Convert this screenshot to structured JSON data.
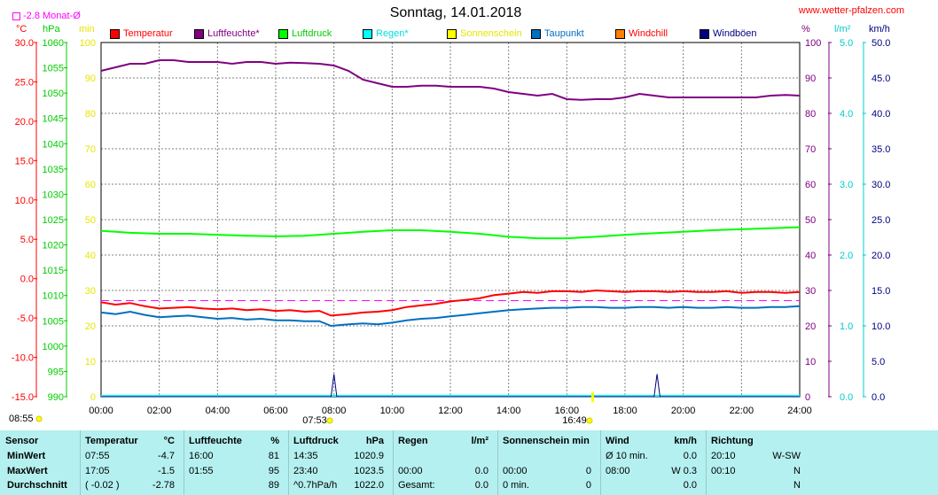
{
  "header": {
    "title": "Sonntag, 14.01.2018",
    "site": "www.wetter-pfalzen.com",
    "month_avg": "-2.8 Monat-Ø"
  },
  "units": {
    "temp": "°C",
    "pressure": "hPa",
    "minutes": "min",
    "percent": "%",
    "rain": "l/m²",
    "wind": "km/h"
  },
  "legend": [
    {
      "label": "Temperatur",
      "color": "#ff0000"
    },
    {
      "label": "Luftfeuchte*",
      "color": "#800080"
    },
    {
      "label": "Luftdruck",
      "color": "#00ff00"
    },
    {
      "label": "Regen*",
      "color": "#00ffff"
    },
    {
      "label": "Sonnenschein",
      "color": "#ffff00"
    },
    {
      "label": "Taupunkt",
      "color": "#0070c0"
    },
    {
      "label": "Windchill",
      "color": "#ff8000"
    },
    {
      "label": "Windböen",
      "color": "#000080"
    }
  ],
  "axes": {
    "temp_ticks": [
      "30.0",
      "25.0",
      "20.0",
      "15.0",
      "10.0",
      "5.0",
      "0.0",
      "-5.0",
      "-10.0",
      "-15.0"
    ],
    "pressure_ticks": [
      "1060",
      "1055",
      "1050",
      "1045",
      "1040",
      "1035",
      "1030",
      "1025",
      "1020",
      "1015",
      "1010",
      "1005",
      "1000",
      "995",
      "990"
    ],
    "minutes_ticks": [
      "100",
      "90",
      "80",
      "70",
      "60",
      "50",
      "40",
      "30",
      "20",
      "10",
      "0"
    ],
    "percent_ticks": [
      "100",
      "90",
      "80",
      "70",
      "60",
      "50",
      "40",
      "30",
      "20",
      "10",
      "0"
    ],
    "rain_ticks": [
      "5.0",
      "4.0",
      "3.0",
      "2.0",
      "1.0",
      "0.0"
    ],
    "wind_ticks": [
      "50.0",
      "45.0",
      "40.0",
      "35.0",
      "30.0",
      "25.0",
      "20.0",
      "15.0",
      "10.0",
      "5.0",
      "0.0"
    ],
    "time_ticks": [
      "00:00",
      "02:00",
      "04:00",
      "06:00",
      "08:00",
      "10:00",
      "12:00",
      "14:00",
      "16:00",
      "18:00",
      "20:00",
      "22:00",
      "24:00"
    ]
  },
  "sun": {
    "rise_left": "08:55",
    "rise_axis": "07:53",
    "set_axis": "16:49"
  },
  "chart_data": {
    "type": "line",
    "x_unit": "hours",
    "xlim": [
      0,
      24
    ],
    "month_avg_temp": -2.8,
    "series": [
      {
        "name": "Temperatur",
        "color": "#ff0000",
        "axis": "temp",
        "ylim": [
          -15,
          30
        ],
        "x": [
          0,
          0.5,
          1,
          1.5,
          2,
          2.5,
          3,
          3.5,
          4,
          4.5,
          5,
          5.5,
          6,
          6.5,
          7,
          7.5,
          7.9,
          8.5,
          9,
          9.5,
          10,
          10.5,
          11,
          11.5,
          12,
          12.5,
          13,
          13.5,
          14,
          14.5,
          15,
          15.5,
          16,
          16.5,
          17,
          17.5,
          18,
          18.5,
          19,
          19.5,
          20,
          20.5,
          21,
          21.5,
          22,
          22.5,
          23,
          23.5,
          24
        ],
        "y": [
          -3.0,
          -3.3,
          -3.1,
          -3.5,
          -3.8,
          -3.7,
          -3.6,
          -3.8,
          -3.9,
          -3.8,
          -4.0,
          -3.9,
          -4.1,
          -4.0,
          -4.2,
          -4.1,
          -4.7,
          -4.5,
          -4.3,
          -4.2,
          -4.0,
          -3.6,
          -3.4,
          -3.2,
          -2.9,
          -2.7,
          -2.5,
          -2.1,
          -1.9,
          -1.7,
          -1.8,
          -1.6,
          -1.6,
          -1.7,
          -1.5,
          -1.6,
          -1.7,
          -1.6,
          -1.6,
          -1.7,
          -1.6,
          -1.7,
          -1.7,
          -1.6,
          -1.8,
          -1.7,
          -1.7,
          -1.8,
          -1.7
        ]
      },
      {
        "name": "Luftfeuchte*",
        "color": "#800080",
        "axis": "percent",
        "ylim": [
          0,
          100
        ],
        "x": [
          0,
          0.5,
          1,
          1.5,
          2,
          2.5,
          3,
          3.5,
          4,
          4.5,
          5,
          5.5,
          6,
          6.5,
          7,
          7.5,
          8,
          8.5,
          9,
          9.5,
          10,
          10.5,
          11,
          11.5,
          12,
          12.5,
          13,
          13.5,
          14,
          14.5,
          15,
          15.5,
          16,
          16.5,
          17,
          17.5,
          18,
          18.5,
          19,
          19.5,
          20,
          20.5,
          21,
          21.5,
          22,
          22.5,
          23,
          23.5,
          24
        ],
        "y": [
          92,
          93,
          94,
          94,
          95,
          95,
          94.5,
          94.5,
          94.5,
          94,
          94.5,
          94.5,
          94,
          94.3,
          94.2,
          94,
          93.5,
          92,
          89.5,
          88.5,
          87.5,
          87.5,
          87.8,
          87.8,
          87.5,
          87.5,
          87.5,
          87,
          86,
          85.5,
          85,
          85.5,
          84,
          83.8,
          84,
          84,
          84.5,
          85.5,
          85,
          84.5,
          84.5,
          84.5,
          84.5,
          84.5,
          84.5,
          84.5,
          85,
          85.2,
          85
        ]
      },
      {
        "name": "Luftdruck",
        "color": "#00ff00",
        "axis": "pressure",
        "ylim": [
          990,
          1060
        ],
        "x": [
          0,
          1,
          2,
          3,
          4,
          5,
          6,
          7,
          8,
          9,
          10,
          11,
          12,
          13,
          14,
          15,
          16,
          17,
          18,
          19,
          20,
          21,
          22,
          23,
          24
        ],
        "y": [
          1022.8,
          1022.4,
          1022.2,
          1022.2,
          1022.0,
          1021.8,
          1021.7,
          1021.8,
          1022.2,
          1022.6,
          1022.9,
          1022.9,
          1022.6,
          1022.2,
          1021.6,
          1021.3,
          1021.3,
          1021.6,
          1022.0,
          1022.3,
          1022.6,
          1022.9,
          1023.1,
          1023.3,
          1023.5
        ]
      },
      {
        "name": "Taupunkt",
        "color": "#0070c0",
        "axis": "temp",
        "ylim": [
          -15,
          30
        ],
        "x": [
          0,
          0.5,
          1,
          1.5,
          2,
          2.5,
          3,
          3.5,
          4,
          4.5,
          5,
          5.5,
          6,
          6.5,
          7,
          7.5,
          7.9,
          8.5,
          9,
          9.5,
          10,
          10.5,
          11,
          11.5,
          12,
          12.5,
          13,
          13.5,
          14,
          14.5,
          15,
          15.5,
          16,
          16.5,
          17,
          17.5,
          18,
          18.5,
          19,
          19.5,
          20,
          20.5,
          21,
          21.5,
          22,
          22.5,
          23,
          23.5,
          24
        ],
        "y": [
          -4.3,
          -4.5,
          -4.2,
          -4.6,
          -4.9,
          -4.8,
          -4.7,
          -4.9,
          -5.1,
          -5.0,
          -5.2,
          -5.1,
          -5.3,
          -5.3,
          -5.4,
          -5.4,
          -6.0,
          -5.8,
          -5.7,
          -5.8,
          -5.6,
          -5.3,
          -5.1,
          -5.0,
          -4.8,
          -4.6,
          -4.4,
          -4.2,
          -4.0,
          -3.9,
          -3.8,
          -3.7,
          -3.7,
          -3.6,
          -3.6,
          -3.7,
          -3.7,
          -3.6,
          -3.6,
          -3.7,
          -3.6,
          -3.7,
          -3.7,
          -3.6,
          -3.7,
          -3.7,
          -3.6,
          -3.6,
          -3.5
        ]
      },
      {
        "name": "Windböen",
        "color": "#000080",
        "axis": "wind",
        "ylim": [
          0,
          50
        ],
        "x": [
          0,
          7.9,
          8.0,
          8.1,
          19.0,
          19.1,
          19.2,
          24
        ],
        "y": [
          0,
          0,
          3.2,
          0,
          0,
          3.2,
          0,
          0
        ]
      }
    ]
  },
  "table": {
    "headers": [
      {
        "a": "Sensor",
        "b": ""
      },
      {
        "a": "Temperatur",
        "b": "°C"
      },
      {
        "a": "Luftfeuchte",
        "b": "%"
      },
      {
        "a": "Luftdruck",
        "b": "hPa"
      },
      {
        "a": "Regen",
        "b": "l/m²"
      },
      {
        "a": "Sonnenschein min",
        "b": ""
      },
      {
        "a": "Wind",
        "b": "km/h"
      },
      {
        "a": "Richtung",
        "b": ""
      }
    ],
    "rows": [
      {
        "label": "MinWert",
        "cells": [
          [
            "07:55",
            "-4.7"
          ],
          [
            "16:00",
            "81"
          ],
          [
            "14:35",
            "1020.9"
          ],
          [
            "",
            ""
          ],
          [
            "",
            ""
          ],
          [
            "Ø 10 min.",
            "0.0"
          ],
          [
            "20:10",
            "W-SW"
          ]
        ]
      },
      {
        "label": "MaxWert",
        "cells": [
          [
            "17:05",
            "-1.5"
          ],
          [
            "01:55",
            "95"
          ],
          [
            "23:40",
            "1023.5"
          ],
          [
            "00:00",
            "0.0"
          ],
          [
            "00:00",
            "0"
          ],
          [
            "08:00",
            "W 0.3"
          ],
          [
            "00:10",
            "N"
          ]
        ]
      },
      {
        "label": "Durchschnitt",
        "cells": [
          [
            "( -0.02 )",
            "-2.78"
          ],
          [
            "",
            "89"
          ],
          [
            "^0.7hPa/h",
            "1022.0"
          ],
          [
            "Gesamt:",
            "0.0"
          ],
          [
            "0 min.",
            "0"
          ],
          [
            "",
            "0.0"
          ],
          [
            "",
            "N"
          ]
        ]
      }
    ]
  }
}
